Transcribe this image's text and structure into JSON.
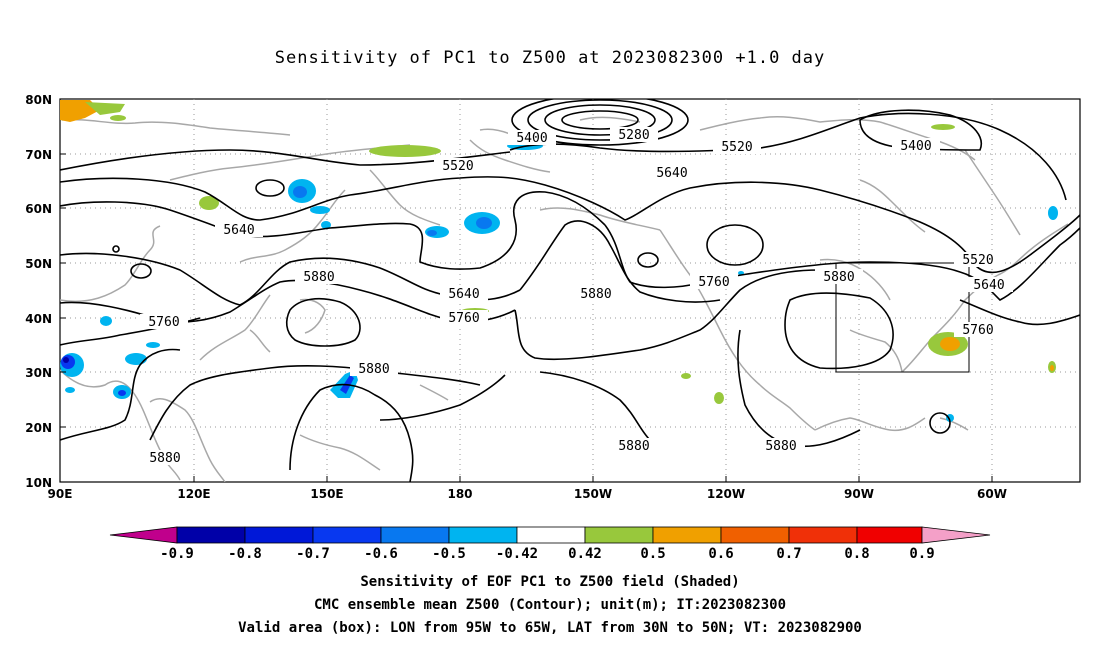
{
  "title": "Sensitivity of PC1 to Z500 at 2023082300 +1.0 day",
  "lat_labels": [
    "80N",
    "70N",
    "60N",
    "50N",
    "40N",
    "30N",
    "20N",
    "10N"
  ],
  "lon_labels": [
    "90E",
    "120E",
    "150E",
    "180",
    "150W",
    "120W",
    "90W",
    "60W"
  ],
  "colorbar": {
    "labels": [
      "-0.9",
      "-0.8",
      "-0.7",
      "-0.6",
      "-0.5",
      "-0.42",
      "0.42",
      "0.5",
      "0.6",
      "0.7",
      "0.8",
      "0.9"
    ],
    "colors": [
      "#c0008c",
      "#0000a8",
      "#0018d8",
      "#0838f0",
      "#0878f0",
      "#00b4f0",
      "#ffffff",
      "#98c83c",
      "#f0a000",
      "#f06000",
      "#f03008",
      "#f00000",
      "#f4a0c8"
    ]
  },
  "contour_labels": [
    "5400",
    "5280",
    "5520",
    "5640",
    "5520",
    "5400",
    "5640",
    "5880",
    "5640",
    "5760",
    "5880",
    "5760",
    "5880",
    "5520",
    "5640",
    "5760",
    "5880",
    "5760",
    "5880",
    "5880",
    "5880"
  ],
  "box": {
    "lon_from": "95W",
    "lon_to": "65W",
    "lat_from": "30N",
    "lat_to": "50N"
  },
  "captions": {
    "line1": "Sensitivity of EOF PC1 to Z500 field (Shaded)",
    "line2": "CMC ensemble mean Z500 (Contour); unit(m); IT:2023082300",
    "line3": "Valid area (box): LON from 95W to 65W, LAT from 30N to 50N; VT: 2023082900"
  }
}
